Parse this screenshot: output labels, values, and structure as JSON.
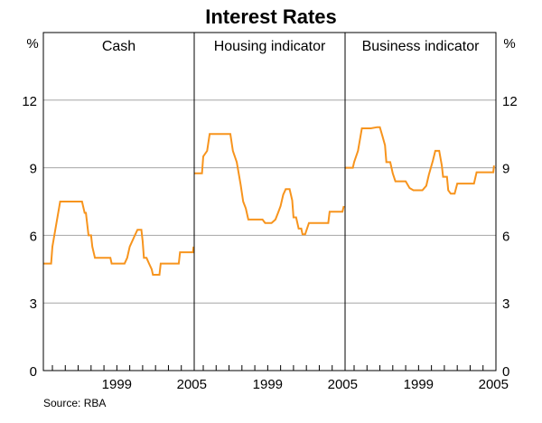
{
  "chart_data": {
    "type": "line",
    "title": "Interest Rates",
    "unit_left": "%",
    "unit_right": "%",
    "source": "Source: RBA",
    "series_color": "#F7941D",
    "grid_color": "#A6A6A6",
    "xlim": [
      1993.3,
      2005.0
    ],
    "ylim": [
      0,
      15
    ],
    "yticks": [
      "0",
      "3",
      "6",
      "9",
      "12"
    ],
    "ytick_values": [
      0,
      3,
      6,
      9,
      12
    ],
    "xticks": [
      "1999",
      "2005"
    ],
    "xtick_values": [
      1999,
      2005
    ],
    "xminor_ticks": [
      1994,
      1995,
      1996,
      1997,
      1998,
      1999,
      2000,
      2001,
      2002,
      2003,
      2004,
      2005
    ],
    "grid": true,
    "panels": [
      {
        "title": "Cash",
        "points": [
          [
            1993.3,
            4.75
          ],
          [
            1993.9,
            4.75
          ],
          [
            1994.0,
            5.5
          ],
          [
            1994.3,
            6.5
          ],
          [
            1994.6,
            7.5
          ],
          [
            1995.5,
            7.5
          ],
          [
            1996.3,
            7.5
          ],
          [
            1996.5,
            7.0
          ],
          [
            1996.6,
            7.0
          ],
          [
            1996.8,
            6.0
          ],
          [
            1997.0,
            6.0
          ],
          [
            1997.1,
            5.5
          ],
          [
            1997.3,
            5.0
          ],
          [
            1998.0,
            5.0
          ],
          [
            1998.5,
            5.0
          ],
          [
            1998.6,
            4.75
          ],
          [
            1999.6,
            4.75
          ],
          [
            1999.8,
            5.0
          ],
          [
            2000.0,
            5.5
          ],
          [
            2000.2,
            5.75
          ],
          [
            2000.4,
            6.0
          ],
          [
            2000.6,
            6.25
          ],
          [
            2000.9,
            6.25
          ],
          [
            2001.0,
            5.75
          ],
          [
            2001.1,
            5.0
          ],
          [
            2001.3,
            5.0
          ],
          [
            2001.5,
            4.75
          ],
          [
            2001.7,
            4.5
          ],
          [
            2001.8,
            4.25
          ],
          [
            2002.3,
            4.25
          ],
          [
            2002.4,
            4.75
          ],
          [
            2002.6,
            4.75
          ],
          [
            2003.0,
            4.75
          ],
          [
            2003.5,
            4.75
          ],
          [
            2003.8,
            4.75
          ],
          [
            2003.9,
            5.25
          ],
          [
            2004.5,
            5.25
          ],
          [
            2004.9,
            5.25
          ],
          [
            2004.95,
            5.5
          ]
        ]
      },
      {
        "title": "Housing indicator",
        "points": [
          [
            1993.3,
            8.75
          ],
          [
            1993.6,
            8.75
          ],
          [
            1993.9,
            8.75
          ],
          [
            1994.0,
            9.5
          ],
          [
            1994.3,
            9.75
          ],
          [
            1994.5,
            10.5
          ],
          [
            1995.0,
            10.5
          ],
          [
            1996.1,
            10.5
          ],
          [
            1996.3,
            9.75
          ],
          [
            1996.6,
            9.25
          ],
          [
            1996.9,
            8.25
          ],
          [
            1997.1,
            7.5
          ],
          [
            1997.3,
            7.2
          ],
          [
            1997.5,
            6.7
          ],
          [
            1998.0,
            6.7
          ],
          [
            1998.6,
            6.7
          ],
          [
            1998.8,
            6.55
          ],
          [
            1999.3,
            6.55
          ],
          [
            1999.6,
            6.7
          ],
          [
            1999.8,
            7.0
          ],
          [
            2000.0,
            7.3
          ],
          [
            2000.2,
            7.8
          ],
          [
            2000.4,
            8.05
          ],
          [
            2000.7,
            8.05
          ],
          [
            2000.9,
            7.55
          ],
          [
            2001.0,
            6.8
          ],
          [
            2001.2,
            6.8
          ],
          [
            2001.4,
            6.3
          ],
          [
            2001.6,
            6.3
          ],
          [
            2001.7,
            6.05
          ],
          [
            2001.9,
            6.05
          ],
          [
            2002.2,
            6.55
          ],
          [
            2002.5,
            6.55
          ],
          [
            2003.0,
            6.55
          ],
          [
            2003.3,
            6.55
          ],
          [
            2003.7,
            6.55
          ],
          [
            2003.8,
            7.05
          ],
          [
            2004.2,
            7.05
          ],
          [
            2004.7,
            7.05
          ],
          [
            2004.8,
            7.05
          ],
          [
            2004.9,
            7.3
          ]
        ]
      },
      {
        "title": "Business indicator",
        "points": [
          [
            1993.3,
            9.0
          ],
          [
            1993.9,
            9.0
          ],
          [
            1994.0,
            9.25
          ],
          [
            1994.3,
            9.75
          ],
          [
            1994.6,
            10.75
          ],
          [
            1995.3,
            10.75
          ],
          [
            1995.8,
            10.8
          ],
          [
            1996.0,
            10.8
          ],
          [
            1996.2,
            10.4
          ],
          [
            1996.4,
            10.0
          ],
          [
            1996.5,
            9.25
          ],
          [
            1996.8,
            9.25
          ],
          [
            1997.0,
            8.75
          ],
          [
            1997.2,
            8.4
          ],
          [
            1998.0,
            8.4
          ],
          [
            1998.3,
            8.1
          ],
          [
            1998.6,
            8.0
          ],
          [
            1999.3,
            8.0
          ],
          [
            1999.6,
            8.2
          ],
          [
            1999.8,
            8.7
          ],
          [
            2000.1,
            9.3
          ],
          [
            2000.3,
            9.75
          ],
          [
            2000.6,
            9.75
          ],
          [
            2000.8,
            9.1
          ],
          [
            2000.9,
            8.6
          ],
          [
            2001.2,
            8.6
          ],
          [
            2001.3,
            8.0
          ],
          [
            2001.5,
            7.85
          ],
          [
            2001.8,
            7.85
          ],
          [
            2002.0,
            8.3
          ],
          [
            2002.3,
            8.3
          ],
          [
            2003.0,
            8.3
          ],
          [
            2003.3,
            8.3
          ],
          [
            2003.5,
            8.8
          ],
          [
            2004.0,
            8.8
          ],
          [
            2004.6,
            8.8
          ],
          [
            2004.8,
            8.8
          ],
          [
            2004.85,
            9.1
          ]
        ]
      }
    ]
  }
}
